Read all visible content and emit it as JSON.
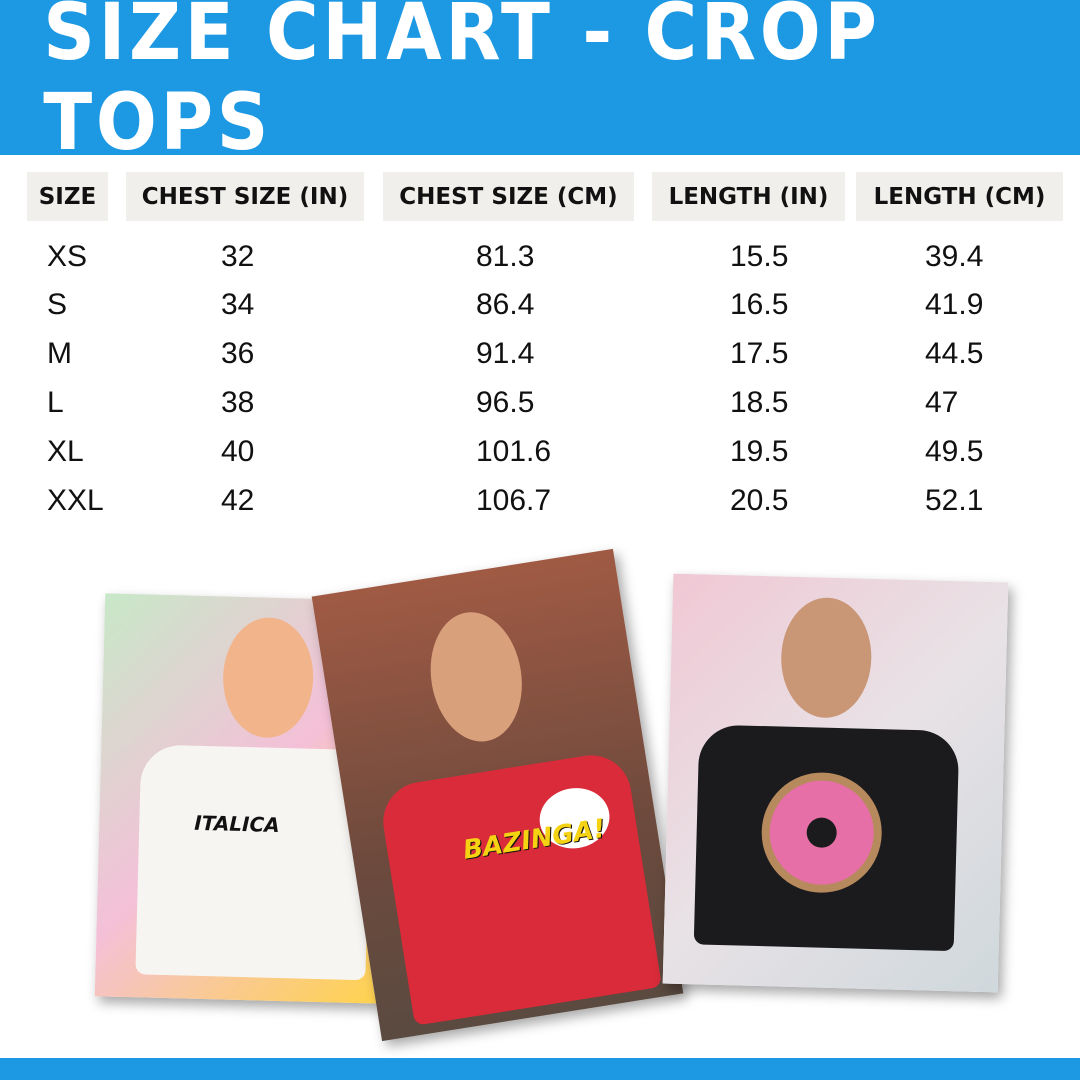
{
  "title": "SIZE CHART - CROP TOPS",
  "table": {
    "headers": [
      "SIZE",
      "CHEST SIZE (IN)",
      "CHEST SIZE (CM)",
      "LENGTH (IN)",
      "LENGTH (CM)"
    ],
    "rows": [
      [
        "XS",
        "32",
        "81.3",
        "15.5",
        "39.4"
      ],
      [
        "S",
        "34",
        "86.4",
        "16.5",
        "41.9"
      ],
      [
        "M",
        "36",
        "91.4",
        "17.5",
        "44.5"
      ],
      [
        "L",
        "38",
        "96.5",
        "18.5",
        "47"
      ],
      [
        "XL",
        "40",
        "101.6",
        "19.5",
        "49.5"
      ],
      [
        "XXL",
        "42",
        "106.7",
        "20.5",
        "52.1"
      ]
    ]
  },
  "photos": [
    {
      "shirt_print": "ITALICA",
      "shirt_color": "#f7f5f2"
    },
    {
      "shirt_print": "BAZINGA!",
      "shirt_color": "#d92b3a"
    },
    {
      "shirt_print": "",
      "shirt_color": "#1b1b1d"
    }
  ],
  "colors": {
    "brand": "#1d98e3",
    "header_cell": "#f0efeb"
  }
}
